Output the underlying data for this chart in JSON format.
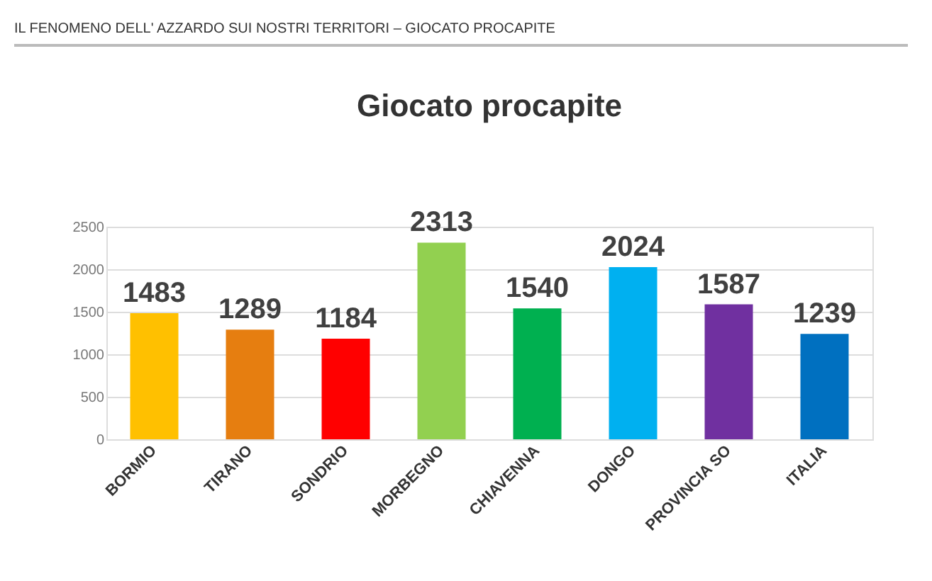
{
  "chart_data": {
    "type": "bar",
    "title": "Giocato procapite",
    "annotations": [
      "IL FENOMENO DELL' AZZARDO SUI NOSTRI TERRITORI – GIOCATO PROCAPITE"
    ],
    "categories": [
      "BORMIO",
      "TIRANO",
      "SONDRIO",
      "MORBEGNO",
      "CHIAVENNA",
      "DONGO",
      "PROVINCIA SO",
      "ITALIA"
    ],
    "values": [
      1483,
      1289,
      1184,
      2313,
      1540,
      2024,
      1587,
      1239
    ],
    "colors": [
      "#ffc000",
      "#e67e10",
      "#ff0000",
      "#92d050",
      "#00b050",
      "#00b0f0",
      "#7030a0",
      "#0070c0"
    ],
    "ylim": [
      0,
      2500
    ],
    "yticks": [
      0,
      500,
      1000,
      1500,
      2000,
      2500
    ],
    "grid": "y",
    "data_labels": true
  }
}
